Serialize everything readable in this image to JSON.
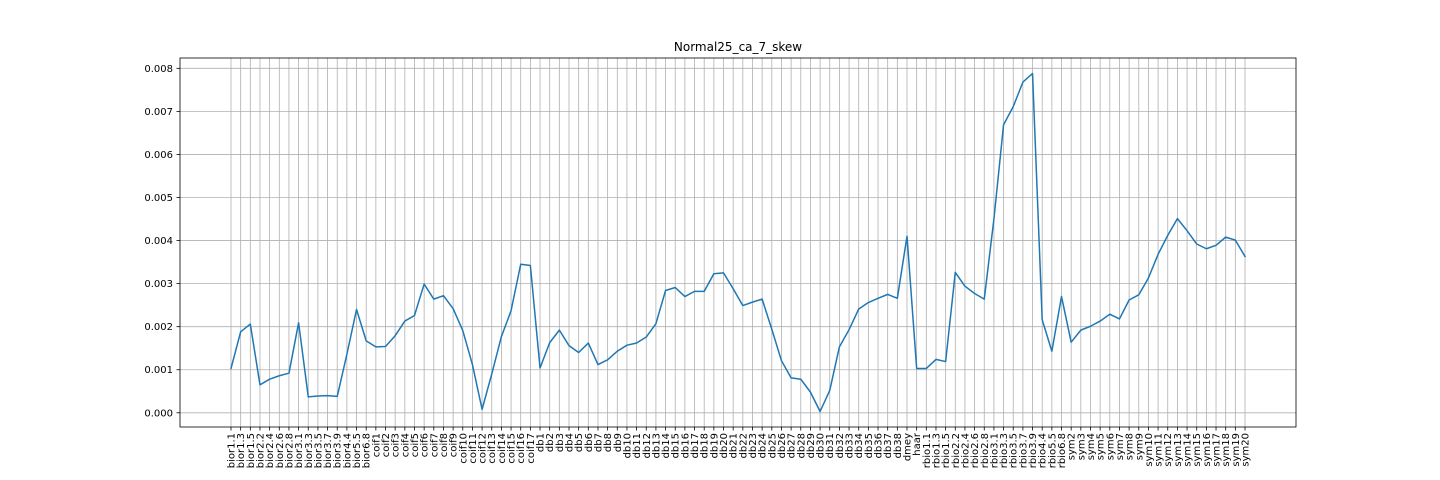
{
  "chart_data": {
    "type": "line",
    "title": "Normal25_ca_7_skew",
    "xlabel": "",
    "ylabel": "",
    "ylim": [
      -0.00033,
      0.00824
    ],
    "grid": true,
    "yticks": [
      "0.000",
      "0.001",
      "0.002",
      "0.003",
      "0.004",
      "0.005",
      "0.006",
      "0.007",
      "0.008"
    ],
    "ytick_values": [
      0,
      0.001,
      0.002,
      0.003,
      0.004,
      0.005,
      0.006,
      0.007,
      0.008
    ],
    "categories": [
      "bior1.1",
      "bior1.3",
      "bior1.5",
      "bior2.2",
      "bior2.4",
      "bior2.6",
      "bior2.8",
      "bior3.1",
      "bior3.3",
      "bior3.5",
      "bior3.7",
      "bior3.9",
      "bior4.4",
      "bior5.5",
      "bior6.8",
      "coif1",
      "coif2",
      "coif3",
      "coif4",
      "coif5",
      "coif6",
      "coif7",
      "coif8",
      "coif9",
      "coif10",
      "coif11",
      "coif12",
      "coif13",
      "coif14",
      "coif15",
      "coif16",
      "coif17",
      "db1",
      "db2",
      "db3",
      "db4",
      "db5",
      "db6",
      "db7",
      "db8",
      "db9",
      "db10",
      "db11",
      "db12",
      "db13",
      "db14",
      "db15",
      "db16",
      "db17",
      "db18",
      "db19",
      "db20",
      "db21",
      "db22",
      "db23",
      "db24",
      "db25",
      "db26",
      "db27",
      "db28",
      "db29",
      "db30",
      "db31",
      "db32",
      "db33",
      "db34",
      "db35",
      "db36",
      "db37",
      "db38",
      "dmey",
      "haar",
      "rbio1.1",
      "rbio1.3",
      "rbio1.5",
      "rbio2.2",
      "rbio2.4",
      "rbio2.6",
      "rbio2.8",
      "rbio3.1",
      "rbio3.3",
      "rbio3.5",
      "rbio3.7",
      "rbio3.9",
      "rbio4.4",
      "rbio5.5",
      "rbio6.8",
      "sym2",
      "sym3",
      "sym4",
      "sym5",
      "sym6",
      "sym7",
      "sym8",
      "sym9",
      "sym10",
      "sym11",
      "sym12",
      "sym13",
      "sym14",
      "sym15",
      "sym16",
      "sym17",
      "sym18",
      "sym19",
      "sym20"
    ],
    "series": [
      {
        "color": "#1f77b4",
        "values": [
          0.00103,
          0.00188,
          0.00206,
          0.00065,
          0.00078,
          0.00086,
          0.00092,
          0.00209,
          0.00037,
          0.00039,
          0.0004,
          0.00038,
          0.00136,
          0.0024,
          0.00167,
          0.00153,
          0.00154,
          0.00179,
          0.00213,
          0.00226,
          0.00299,
          0.00264,
          0.00272,
          0.00242,
          0.00191,
          0.00112,
          8e-05,
          0.0009,
          0.00177,
          0.00237,
          0.00345,
          0.00342,
          0.00104,
          0.00163,
          0.00192,
          0.00156,
          0.0014,
          0.00162,
          0.00112,
          0.00123,
          0.00143,
          0.00157,
          0.00162,
          0.00176,
          0.00207,
          0.00284,
          0.00291,
          0.0027,
          0.00282,
          0.00282,
          0.00323,
          0.00325,
          0.00288,
          0.00249,
          0.00257,
          0.00264,
          0.00194,
          0.00121,
          0.00081,
          0.00078,
          0.00048,
          3e-05,
          0.00052,
          0.00153,
          0.00193,
          0.00241,
          0.00256,
          0.00266,
          0.00275,
          0.00266,
          0.0041,
          0.00103,
          0.00103,
          0.00124,
          0.00119,
          0.00326,
          0.00294,
          0.00277,
          0.00264,
          0.0045,
          0.00669,
          0.00711,
          0.00768,
          0.00788,
          0.00216,
          0.00143,
          0.0027,
          0.00164,
          0.00192,
          0.00201,
          0.00213,
          0.00229,
          0.00218,
          0.00262,
          0.00274,
          0.00313,
          0.00368,
          0.00412,
          0.00451,
          0.00423,
          0.00392,
          0.00381,
          0.00389,
          0.00408,
          0.00401,
          0.00363
        ]
      }
    ]
  }
}
